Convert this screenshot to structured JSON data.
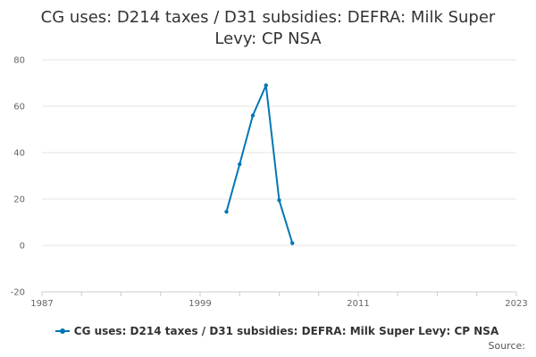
{
  "colors": {
    "series": "#0077b6",
    "grid": "#e6e6e6",
    "axis": "#cccccc",
    "text": "#333333"
  },
  "chart_data": {
    "type": "line",
    "title": "CG uses: D214 taxes / D31 subsidies: DEFRA: Milk Super Levy: CP NSA",
    "title_lines": [
      "CG uses: D214 taxes / D31 subsidies: DEFRA: Milk Super",
      "Levy: CP NSA"
    ],
    "xlabel": "",
    "ylabel": "",
    "xlim": [
      1987,
      2023
    ],
    "ylim": [
      -20,
      80
    ],
    "x_ticks": [
      "1987",
      "1999",
      "2011",
      "2023"
    ],
    "y_ticks": [
      "80",
      "60",
      "40",
      "20",
      "0",
      "-20"
    ],
    "grid": "horizontal",
    "legend_position": "bottom",
    "series": [
      {
        "name": "CG uses: D214 taxes / D31 subsidies: DEFRA: Milk Super Levy: CP NSA",
        "x": [
          2001,
          2002,
          2003,
          2004,
          2005,
          2006
        ],
        "y": [
          14.5,
          35,
          56,
          69,
          19.5,
          1
        ]
      }
    ],
    "source_label": "Source:"
  }
}
